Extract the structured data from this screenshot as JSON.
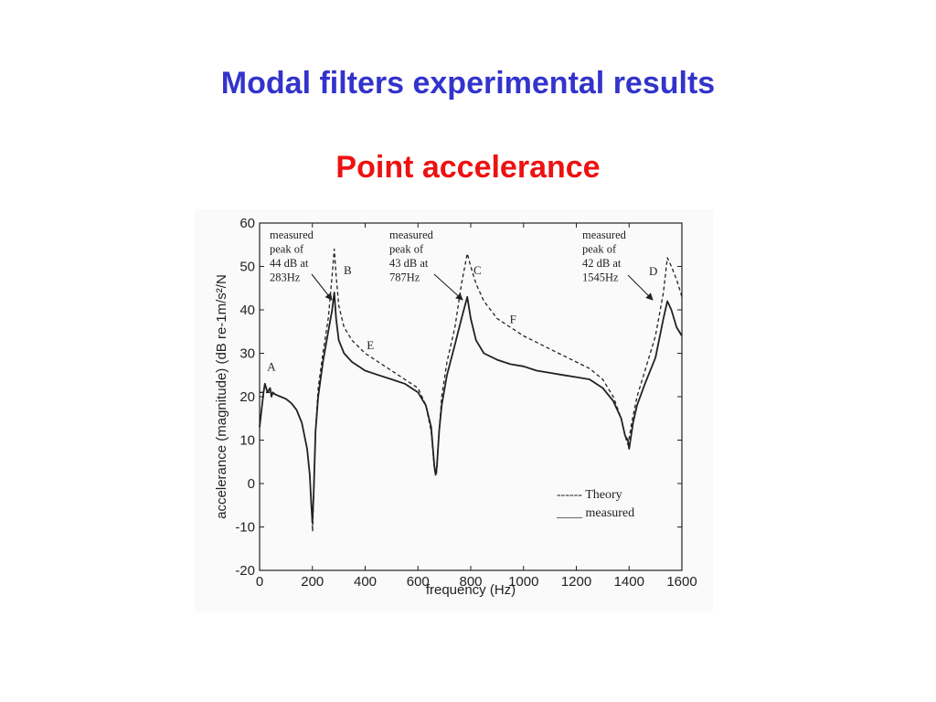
{
  "slide": {
    "title": "Modal filters experimental results",
    "subtitle": "Point accelerance",
    "title_color": "#3333CC",
    "subtitle_color": "#EE1111"
  },
  "chart_data": {
    "type": "line",
    "xlabel": "frequency (Hz)",
    "ylabel": "accelerance (magnitude) (dB re-1m/s²/N",
    "xlim": [
      0,
      1600
    ],
    "ylim": [
      -20,
      60
    ],
    "xticks": [
      0,
      200,
      400,
      600,
      800,
      1000,
      1200,
      1400,
      1600
    ],
    "yticks": [
      60,
      50,
      40,
      30,
      20,
      10,
      0,
      -10,
      -20
    ],
    "grid": false,
    "legend": {
      "position": "bottom-right",
      "entries": [
        "------ Theory",
        "____ measured"
      ]
    },
    "series": [
      {
        "name": "Theory",
        "style": "dashed",
        "x": [
          0,
          20,
          40,
          60,
          80,
          100,
          120,
          140,
          160,
          180,
          190,
          197,
          201,
          205,
          212,
          222,
          240,
          260,
          275,
          283,
          290,
          300,
          320,
          350,
          400,
          450,
          500,
          550,
          600,
          630,
          650,
          663,
          670,
          678,
          690,
          710,
          740,
          765,
          787,
          800,
          820,
          850,
          900,
          950,
          1000,
          1050,
          1100,
          1150,
          1200,
          1250,
          1300,
          1340,
          1370,
          1385,
          1395,
          1402,
          1410,
          1430,
          1460,
          1500,
          1530,
          1545,
          1560,
          1580,
          1600
        ],
        "y": [
          21,
          21,
          21,
          20.5,
          20,
          19.5,
          18.5,
          17,
          14,
          8,
          2,
          -6,
          -11,
          -2,
          12,
          22,
          30,
          38,
          48,
          54,
          48,
          41,
          36,
          33,
          30,
          28,
          26,
          24,
          22,
          18,
          12,
          3,
          2,
          10,
          20,
          28,
          36,
          46,
          53,
          50,
          46,
          42,
          38,
          36,
          34,
          32.5,
          31,
          29.5,
          28,
          26.5,
          24,
          20,
          15,
          11,
          9,
          11,
          14,
          20,
          26,
          34,
          44,
          52,
          50,
          47,
          43
        ]
      },
      {
        "name": "measured",
        "style": "solid",
        "x": [
          0,
          15,
          20,
          30,
          40,
          45,
          50,
          60,
          80,
          100,
          120,
          140,
          160,
          180,
          190,
          196,
          200,
          205,
          212,
          222,
          240,
          260,
          275,
          283,
          290,
          300,
          320,
          350,
          400,
          450,
          500,
          550,
          600,
          630,
          650,
          662,
          667,
          672,
          680,
          690,
          710,
          740,
          765,
          787,
          800,
          820,
          850,
          900,
          950,
          1000,
          1050,
          1100,
          1150,
          1200,
          1250,
          1300,
          1340,
          1370,
          1385,
          1395,
          1400,
          1405,
          1415,
          1430,
          1460,
          1500,
          1530,
          1545,
          1560,
          1580,
          1600
        ],
        "y": [
          13,
          21,
          23,
          21,
          22,
          20,
          21,
          20.5,
          20,
          19.5,
          18.5,
          17,
          14,
          8,
          2,
          -5,
          -9,
          -2,
          12,
          20,
          28,
          35,
          40,
          44,
          38,
          33,
          30,
          28,
          26,
          25,
          24,
          23,
          21,
          18,
          13,
          4,
          2,
          4,
          12,
          18,
          25,
          32,
          38,
          43,
          38,
          33,
          30,
          28.5,
          27.5,
          27,
          26,
          25.5,
          25,
          24.5,
          24,
          22,
          19,
          15,
          11,
          10,
          8,
          10,
          14,
          18,
          23,
          29,
          38,
          42,
          40,
          36,
          34
        ]
      }
    ],
    "annotations": [
      {
        "lines": [
          "measured",
          "peak of",
          "44 dB at",
          "283Hz"
        ],
        "label": "B",
        "x": 283,
        "y": 44
      },
      {
        "lines": [
          "measured",
          "peak of",
          "43 dB at",
          "787Hz"
        ],
        "label": "C",
        "x": 787,
        "y": 43
      },
      {
        "lines": [
          "measured",
          "peak of",
          "42 dB at",
          "1545Hz"
        ],
        "label": "D",
        "x": 1545,
        "y": 42
      }
    ],
    "labels": [
      {
        "text": "A",
        "x": 45,
        "y": 26
      },
      {
        "text": "E",
        "x": 420,
        "y": 31
      },
      {
        "text": "F",
        "x": 960,
        "y": 37
      }
    ]
  }
}
